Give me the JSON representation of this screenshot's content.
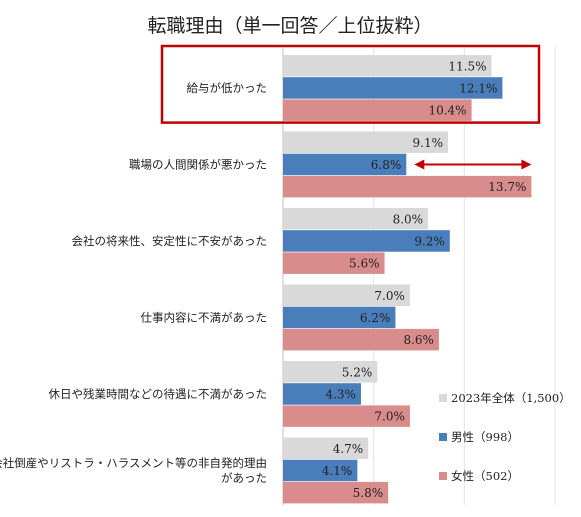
{
  "chart_data": {
    "type": "bar",
    "orientation": "horizontal",
    "title": "転職理由（単一回答／上位抜粋）",
    "categories": [
      [
        "給与が低かった"
      ],
      [
        "職場の人間関係が悪かった"
      ],
      [
        "会社の将来性、安定性に不安があった"
      ],
      [
        "仕事内容に不満があった"
      ],
      [
        "休日や残業時間などの待遇に不満があった"
      ],
      [
        "会社倒産やリストラ・ハラスメント等の非自発的理由",
        "があった"
      ]
    ],
    "series": [
      {
        "name": "2023年全体（1,500）",
        "values": [
          11.5,
          9.1,
          8.0,
          7.0,
          5.2,
          4.7
        ],
        "labels": [
          "11.5%",
          "9.1%",
          "8.0%",
          "7.0%",
          "5.2%",
          "4.7%"
        ],
        "color": "#d9d9d9"
      },
      {
        "name": "男性（998）",
        "values": [
          12.1,
          6.8,
          9.2,
          6.2,
          4.3,
          4.1
        ],
        "labels": [
          "12.1%",
          "6.8%",
          "9.2%",
          "6.2%",
          "4.3%",
          "4.1%"
        ],
        "color": "#4a7ebb"
      },
      {
        "name": "女性（502）",
        "values": [
          10.4,
          13.7,
          5.6,
          8.6,
          7.0,
          5.8
        ],
        "labels": [
          "10.4%",
          "13.7%",
          "5.6%",
          "8.6%",
          "7.0%",
          "5.8%"
        ],
        "color": "#d98c8c"
      }
    ],
    "xlim": [
      0,
      15
    ],
    "grid": true,
    "legend": "bottom-right",
    "annotations": [
      {
        "type": "highlight-box",
        "category_index": 0,
        "color": "#c00000"
      },
      {
        "type": "double-arrow",
        "category_index": 1,
        "from_series": 1,
        "to_series": 2,
        "color": "#c00000"
      }
    ]
  }
}
